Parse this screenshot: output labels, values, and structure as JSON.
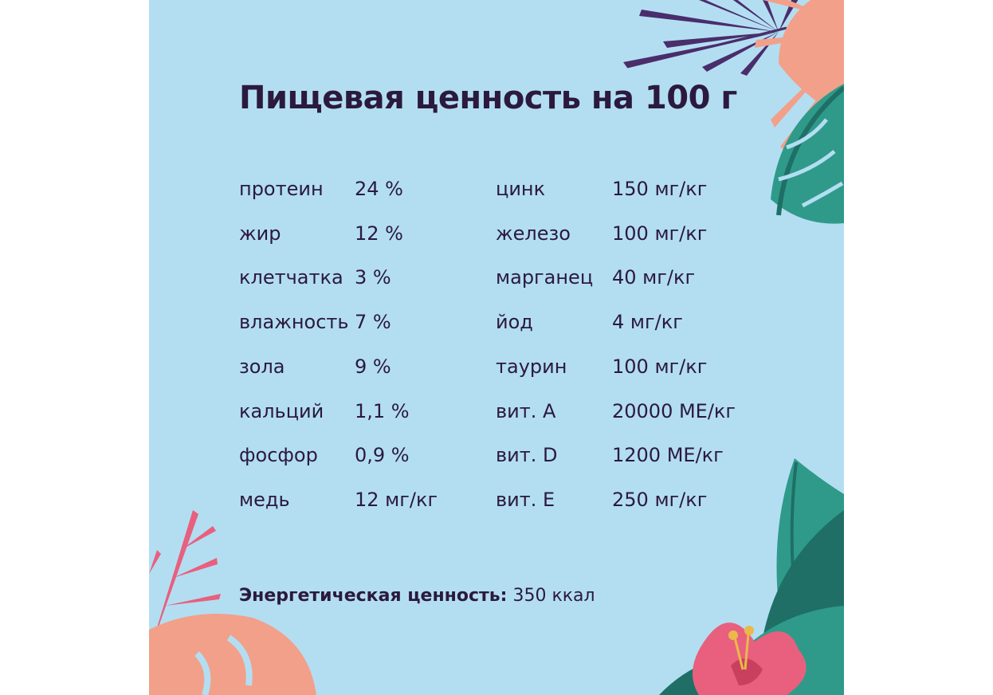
{
  "title": "Пищевая ценность на 100 г",
  "left_column": [
    {
      "name": "протеин",
      "value": "24 %"
    },
    {
      "name": "жир",
      "value": "12 %"
    },
    {
      "name": "клетчатка",
      "value": "3 %"
    },
    {
      "name": "влажность",
      "value": "7 %"
    },
    {
      "name": "зола",
      "value": "9 %"
    },
    {
      "name": "кальций",
      "value": "1,1 %"
    },
    {
      "name": "фосфор",
      "value": "0,9 %"
    },
    {
      "name": "медь",
      "value": "12 мг/кг"
    }
  ],
  "right_column": [
    {
      "name": "цинк",
      "value": "150 мг/кг"
    },
    {
      "name": "железо",
      "value": "100 мг/кг"
    },
    {
      "name": "марганец",
      "value": "40 мг/кг"
    },
    {
      "name": "йод",
      "value": "4 мг/кг"
    },
    {
      "name": "таурин",
      "value": "100 мг/кг"
    },
    {
      "name": "вит. A",
      "value": "20000 МЕ/кг"
    },
    {
      "name": "вит. D",
      "value": "1200 МЕ/кг"
    },
    {
      "name": "вит. E",
      "value": "250 мг/кг"
    }
  ],
  "energy": {
    "label": "Энергетическая ценность:",
    "value": "350 ккал"
  },
  "colors": {
    "background": "#b3def2",
    "text": "#2b1a3d",
    "leaf_purple": "#4a2d6b",
    "leaf_peach": "#f2a08a",
    "leaf_teal": "#2f9a8a",
    "leaf_pink": "#e8607e",
    "flower_yellow": "#e9b94a"
  },
  "decorations": [
    "purple-palm-leaf",
    "peach-palm-leaf",
    "teal-monstera-leaf",
    "pink-fern-leaf",
    "peach-monstera-leaf",
    "teal-leaves",
    "hibiscus-flower"
  ]
}
